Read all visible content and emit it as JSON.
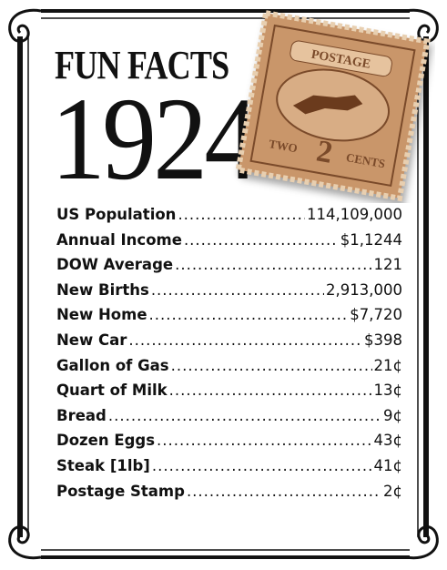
{
  "header": {
    "title": "FUN FACTS",
    "year": "1924"
  },
  "stamp": {
    "top_text": "POSTAGE",
    "bottom_left": "TWO",
    "bottom_right": "CENTS"
  },
  "facts": [
    {
      "label": "US Population",
      "value": "114,109,000"
    },
    {
      "label": "Annual Income",
      "value": "$1,1244"
    },
    {
      "label": "DOW Average",
      "value": "121"
    },
    {
      "label": "New Births",
      "value": "2,913,000"
    },
    {
      "label": "New Home",
      "value": "$7,720"
    },
    {
      "label": "New Car",
      "value": "$398"
    },
    {
      "label": "Gallon of Gas",
      "value": "21¢"
    },
    {
      "label": "Quart of Milk",
      "value": "13¢"
    },
    {
      "label": "Bread",
      "value": "9¢"
    },
    {
      "label": "Dozen Eggs",
      "value": "43¢"
    },
    {
      "label": "Steak [1lb]",
      "value": "41¢"
    },
    {
      "label": "Postage Stamp",
      "value": "2¢"
    }
  ]
}
